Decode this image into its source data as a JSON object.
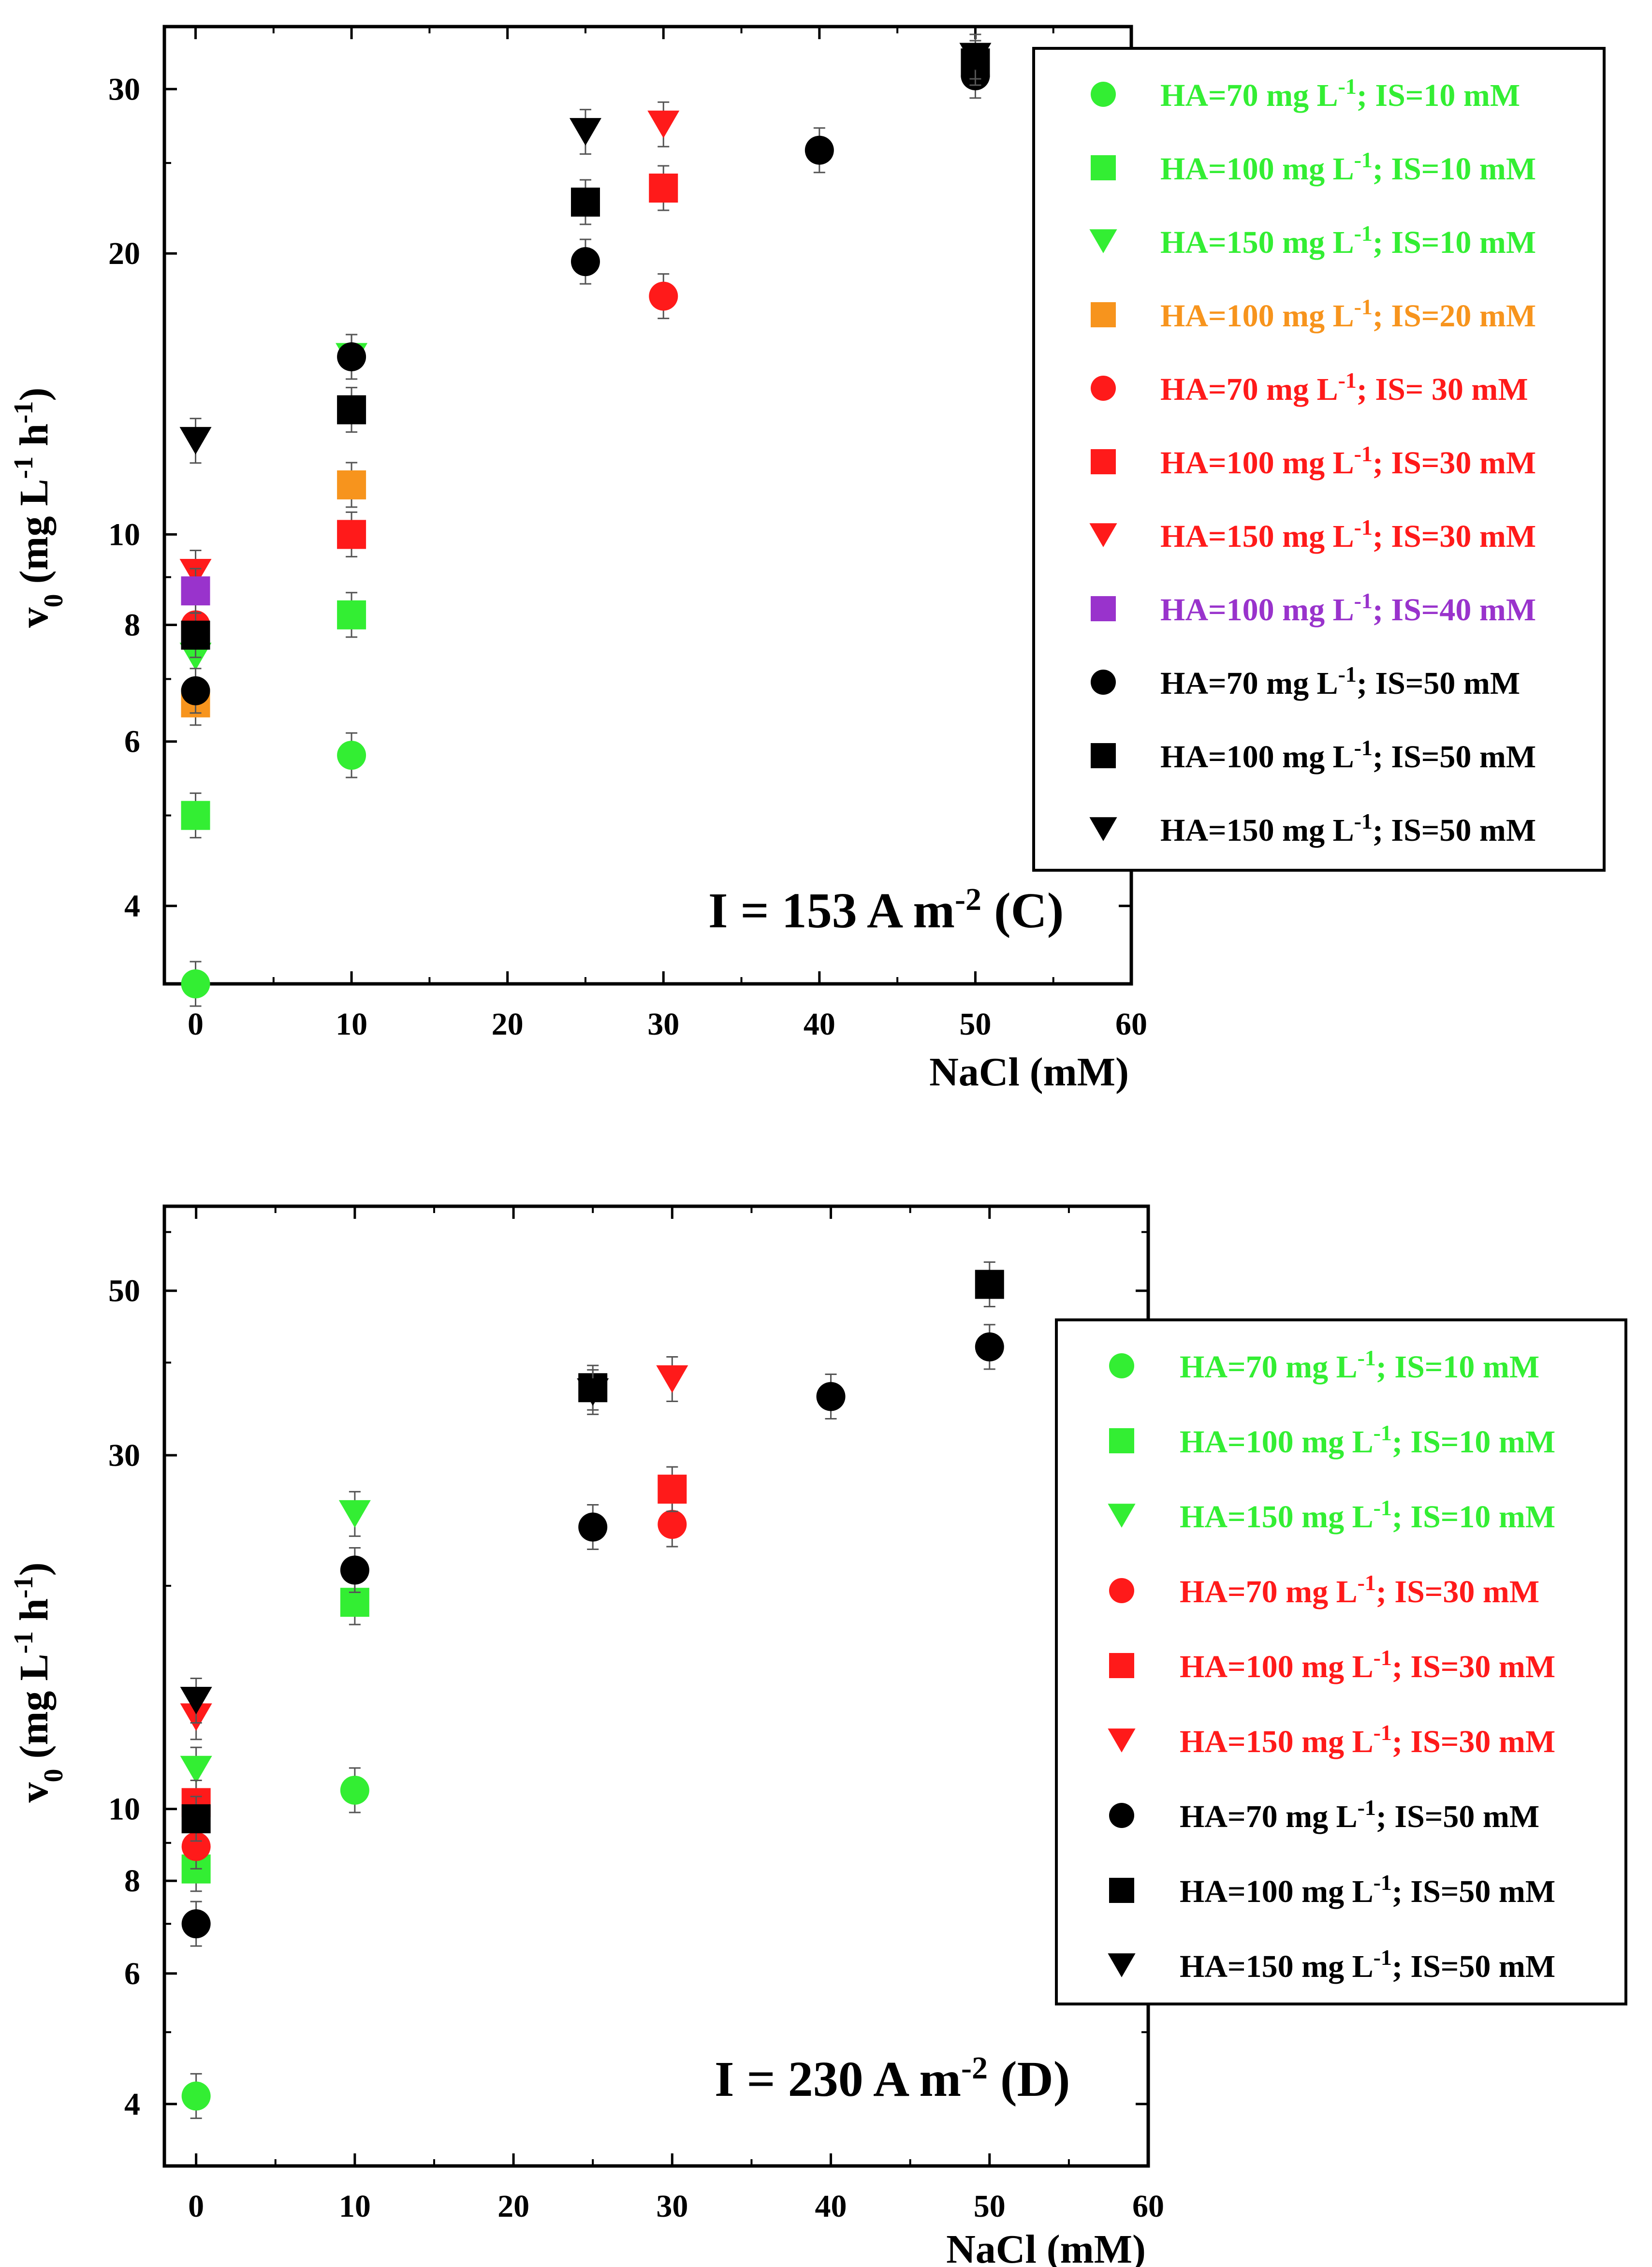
{
  "colors": {
    "green": "#33ee33",
    "orange": "#f7941d",
    "red": "#ff1a1a",
    "purple": "#9933cc",
    "black": "#000000"
  },
  "chart_data": [
    {
      "id": "C",
      "type": "scatter",
      "annotation": "I = 153 A m-2 (C)",
      "annotation_main": "I = 153 A m",
      "annotation_sup": "-2",
      "annotation_tail": "(C)",
      "ylabel_main": "v",
      "ylabel_sub": "0",
      "ylabel_rest": " (mg L",
      "ylabel_sup1": "-1",
      "ylabel_mid": " h",
      "ylabel_sup2": "-1",
      "ylabel_end": ")",
      "xlabel": "NaCl (mM)",
      "x_range": [
        -2,
        60
      ],
      "y_range": [
        3.3,
        35
      ],
      "y_scale": "log",
      "x_ticks": [
        "0",
        "10",
        "20",
        "30",
        "40",
        "50",
        "60"
      ],
      "y_ticks": [
        "4",
        "6",
        "8",
        "10",
        "20",
        "30"
      ],
      "legend_position": "top-right",
      "series": [
        {
          "ha": "70",
          "is": "10",
          "prefix": "HA=",
          "unit": " mg L",
          "sup": "-1",
          "suffix": "; IS=10 mM",
          "marker": "circle",
          "color": "green",
          "points": [
            [
              0,
              3.3
            ],
            [
              10,
              5.8
            ]
          ]
        },
        {
          "ha": "100",
          "is": "10",
          "prefix": "HA=",
          "unit": " mg L",
          "sup": "-1",
          "suffix": "; IS=10 mM",
          "marker": "square",
          "color": "green",
          "points": [
            [
              0,
              5.0
            ],
            [
              10,
              8.2
            ]
          ]
        },
        {
          "ha": "150",
          "is": "10",
          "prefix": "HA=",
          "unit": " mg L",
          "sup": "-1",
          "suffix": "; IS=10 mM",
          "marker": "triangle",
          "color": "green",
          "points": [
            [
              0,
              7.4
            ],
            [
              10,
              15.5
            ]
          ]
        },
        {
          "ha": "100",
          "is": "20",
          "prefix": "HA=",
          "unit": " mg L",
          "sup": "-1",
          "suffix": "; IS=20 mM",
          "marker": "square",
          "color": "orange",
          "points": [
            [
              0,
              6.6
            ],
            [
              10,
              11.3
            ]
          ]
        },
        {
          "ha": "70",
          "is": "30",
          "prefix": "HA=",
          "unit": " mg L",
          "sup": "-1",
          "suffix": "; IS= 30 mM",
          "marker": "circle",
          "color": "red",
          "points": [
            [
              0,
              8.0
            ],
            [
              30,
              18.0
            ]
          ]
        },
        {
          "ha": "100",
          "is": "30",
          "prefix": "HA=",
          "unit": " mg L",
          "sup": "-1",
          "suffix": "; IS=30 mM",
          "marker": "square",
          "color": "red",
          "points": [
            [
              10,
              10.0
            ],
            [
              30,
              23.5
            ]
          ]
        },
        {
          "ha": "150",
          "is": "30",
          "prefix": "HA=",
          "unit": " mg L",
          "sup": "-1",
          "suffix": "; IS=30 mM",
          "marker": "triangle",
          "color": "red",
          "points": [
            [
              0,
              9.1
            ],
            [
              30,
              27.5
            ]
          ]
        },
        {
          "ha": "100",
          "is": "40",
          "prefix": "HA=",
          "unit": " mg L",
          "sup": "-1",
          "suffix": "; IS=40 mM",
          "marker": "square",
          "color": "purple",
          "points": [
            [
              0,
              8.7
            ]
          ]
        },
        {
          "ha": "70",
          "is": "50",
          "prefix": "HA=",
          "unit": " mg L",
          "sup": "-1",
          "suffix": "; IS=50 mM",
          "marker": "circle",
          "color": "black",
          "points": [
            [
              0,
              6.8
            ],
            [
              10,
              15.5
            ],
            [
              25,
              19.6
            ],
            [
              40,
              25.8
            ],
            [
              50,
              31.0
            ]
          ]
        },
        {
          "ha": "100",
          "is": "50",
          "prefix": "HA=",
          "unit": " mg L",
          "sup": "-1",
          "suffix": "; IS=50 mM",
          "marker": "square",
          "color": "black",
          "points": [
            [
              0,
              7.8
            ],
            [
              10,
              13.6
            ],
            [
              25,
              22.7
            ],
            [
              50,
              32.0
            ]
          ]
        },
        {
          "ha": "150",
          "is": "50",
          "prefix": "HA=",
          "unit": " mg L",
          "sup": "-1",
          "suffix": "; IS=50 mM",
          "marker": "triangle",
          "color": "black",
          "points": [
            [
              0,
              12.6
            ],
            [
              25,
              27.0
            ],
            [
              50,
              32.5
            ]
          ]
        }
      ]
    },
    {
      "id": "D",
      "type": "scatter",
      "annotation": "I = 230 A m-2 (D)",
      "annotation_main": "I = 230 A m",
      "annotation_sup": "-2",
      "annotation_tail": "(D)",
      "ylabel_main": "v",
      "ylabel_sub": "0",
      "ylabel_rest": " (mg L",
      "ylabel_sup1": "-1",
      "ylabel_mid": " h",
      "ylabel_sup2": "-1",
      "ylabel_end": ")",
      "xlabel": "NaCl (mM)",
      "x_range": [
        -2,
        60
      ],
      "y_range": [
        3.3,
        65
      ],
      "y_scale": "log",
      "x_ticks": [
        "0",
        "10",
        "20",
        "30",
        "40",
        "50",
        "60"
      ],
      "y_ticks": [
        "4",
        "6",
        "8",
        "10",
        "30",
        "50"
      ],
      "legend_position": "right",
      "series": [
        {
          "ha": "70",
          "is": "10",
          "prefix": "HA=",
          "unit": " mg L",
          "sup": "-1",
          "suffix": "; IS=10 mM",
          "marker": "circle",
          "color": "green",
          "points": [
            [
              0,
              4.1
            ],
            [
              10,
              10.6
            ]
          ]
        },
        {
          "ha": "100",
          "is": "10",
          "prefix": "HA=",
          "unit": " mg L",
          "sup": "-1",
          "suffix": "; IS=10 mM",
          "marker": "square",
          "color": "green",
          "points": [
            [
              0,
              8.3
            ],
            [
              10,
              19.0
            ]
          ]
        },
        {
          "ha": "150",
          "is": "10",
          "prefix": "HA=",
          "unit": " mg L",
          "sup": "-1",
          "suffix": "; IS=10 mM",
          "marker": "triangle",
          "color": "green",
          "points": [
            [
              0,
              11.3
            ],
            [
              10,
              25.0
            ]
          ]
        },
        {
          "ha": "70",
          "is": "30",
          "prefix": "HA=",
          "unit": " mg L",
          "sup": "-1",
          "suffix": "; IS=30 mM",
          "marker": "circle",
          "color": "red",
          "points": [
            [
              0,
              8.9
            ],
            [
              30,
              24.2
            ]
          ]
        },
        {
          "ha": "100",
          "is": "30",
          "prefix": "HA=",
          "unit": " mg L",
          "sup": "-1",
          "suffix": "; IS=30 mM",
          "marker": "square",
          "color": "red",
          "points": [
            [
              0,
              10.2
            ],
            [
              30,
              27.0
            ]
          ]
        },
        {
          "ha": "150",
          "is": "30",
          "prefix": "HA=",
          "unit": " mg L",
          "sup": "-1",
          "suffix": "; IS=30 mM",
          "marker": "triangle",
          "color": "red",
          "points": [
            [
              0,
              13.3
            ],
            [
              30,
              38.0
            ]
          ]
        },
        {
          "ha": "70",
          "is": "50",
          "prefix": "HA=",
          "unit": " mg L",
          "sup": "-1",
          "suffix": "; IS=50 mM",
          "marker": "circle",
          "color": "black",
          "points": [
            [
              0,
              7.0
            ],
            [
              10,
              21.0
            ],
            [
              25,
              24.0
            ],
            [
              40,
              36.0
            ],
            [
              50,
              42.0
            ]
          ]
        },
        {
          "ha": "100",
          "is": "50",
          "prefix": "HA=",
          "unit": " mg L",
          "sup": "-1",
          "suffix": "; IS=50 mM",
          "marker": "square",
          "color": "black",
          "points": [
            [
              0,
              9.7
            ],
            [
              25,
              37.0
            ],
            [
              50,
              51.0
            ]
          ]
        },
        {
          "ha": "150",
          "is": "50",
          "prefix": "HA=",
          "unit": " mg L",
          "sup": "-1",
          "suffix": "; IS=50 mM",
          "marker": "triangle",
          "color": "black",
          "points": [
            [
              0,
              14.0
            ],
            [
              25,
              36.5
            ]
          ]
        }
      ]
    }
  ]
}
